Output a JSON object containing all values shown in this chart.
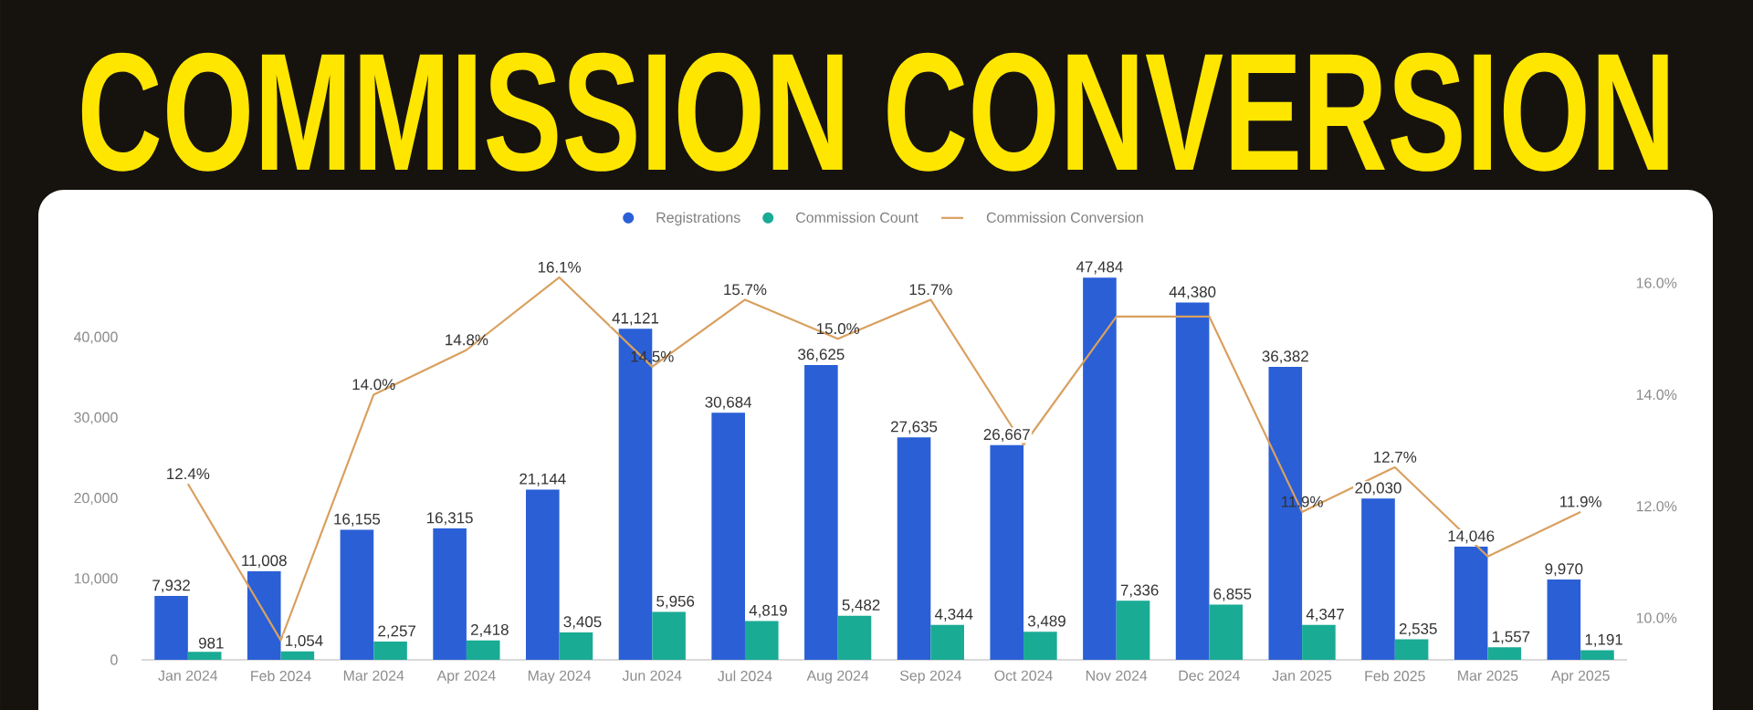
{
  "chart_data": {
    "type": "bar",
    "title": "COMMISSION CONVERSION",
    "categories": [
      "Jan 2024",
      "Feb 2024",
      "Mar 2024",
      "Apr 2024",
      "May 2024",
      "Jun 2024",
      "Jul 2024",
      "Aug 2024",
      "Sep 2024",
      "Oct 2024",
      "Nov 2024",
      "Dec 2024",
      "Jan 2025",
      "Feb 2025",
      "Mar 2025",
      "Apr 2025"
    ],
    "series": [
      {
        "name": "Registrations",
        "color": "#2a5fd6",
        "values": [
          7932,
          11008,
          16155,
          16315,
          21144,
          41121,
          30684,
          36625,
          27635,
          26667,
          47484,
          44380,
          36382,
          20030,
          14046,
          9970
        ],
        "value_labels": [
          "7,932",
          "11,008",
          "16,155",
          "16,315",
          "21,144",
          "41,121",
          "30,684",
          "36,625",
          "27,635",
          "26,667",
          "47,484",
          "44,380",
          "36,382",
          "20,030",
          "14,046",
          "9,970"
        ]
      },
      {
        "name": "Commission Count",
        "color": "#1aab95",
        "values": [
          981,
          1054,
          2257,
          2418,
          3405,
          5956,
          4819,
          5482,
          4344,
          3489,
          7336,
          6855,
          4347,
          2535,
          1557,
          1191
        ],
        "value_labels": [
          "981",
          "1,054",
          "2,257",
          "2,418",
          "3,405",
          "5,956",
          "4,819",
          "5,482",
          "4,344",
          "3,489",
          "7,336",
          "6,855",
          "4,347",
          "2,535",
          "1,557",
          "1,191"
        ]
      },
      {
        "name": "Commission Conversion",
        "type": "line",
        "axis": "y2",
        "color": "#d9a060",
        "values": [
          12.4,
          9.6,
          14.0,
          14.8,
          16.1,
          14.5,
          15.7,
          15.0,
          15.7,
          13.1,
          15.4,
          15.4,
          11.9,
          12.7,
          11.1,
          11.9
        ],
        "value_labels": [
          "12.4%",
          null,
          "14.0%",
          "14.8%",
          "16.1%",
          "14.5%",
          "15.7%",
          "15.0%",
          "15.7%",
          null,
          null,
          null,
          "11.9%",
          "12.7%",
          null,
          "11.9%"
        ]
      }
    ],
    "ylim": [
      0,
      47500
    ],
    "yticks": [
      {
        "value": 0,
        "label": "0"
      },
      {
        "value": 10000,
        "label": "10,000"
      },
      {
        "value": 20000,
        "label": "20,000"
      },
      {
        "value": 30000,
        "label": "30,000"
      },
      {
        "value": 40000,
        "label": "40,000"
      }
    ],
    "y2lim": [
      9.25,
      16.1
    ],
    "y2ticks": [
      {
        "value": 10,
        "label": "10.0%"
      },
      {
        "value": 12,
        "label": "12.0%"
      },
      {
        "value": 14,
        "label": "14.0%"
      },
      {
        "value": 16,
        "label": "16.0%"
      }
    ],
    "legend": "top"
  }
}
